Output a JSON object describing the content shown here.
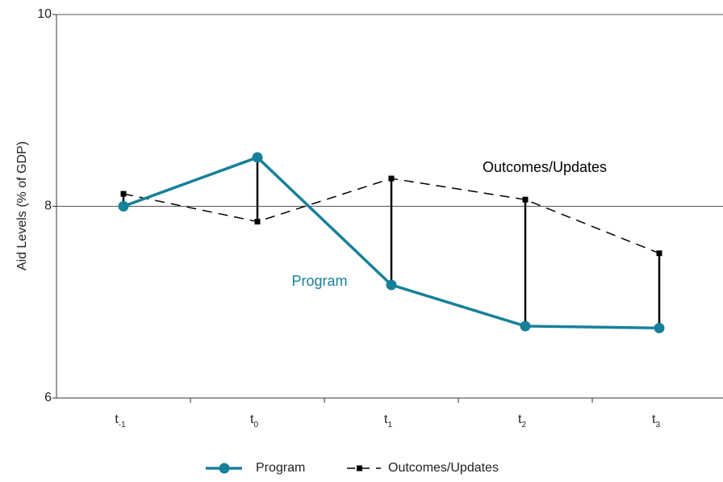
{
  "chart_data": {
    "type": "line",
    "y_label": "Aid Levels (% of GDP)",
    "categories": [
      {
        "base": "t",
        "sub": "-1"
      },
      {
        "base": "t",
        "sub": "0"
      },
      {
        "base": "t",
        "sub": "1"
      },
      {
        "base": "t",
        "sub": "2"
      },
      {
        "base": "t",
        "sub": "3"
      }
    ],
    "series": [
      {
        "name": "Program",
        "color": "#17809a",
        "values": [
          8.0,
          8.51,
          7.18,
          6.75,
          6.73
        ]
      },
      {
        "name": "Outcomes/Updates",
        "color": "#000000",
        "values": [
          8.13,
          7.84,
          8.29,
          8.07,
          7.51
        ]
      }
    ],
    "annotations": [
      {
        "text": "Outcomes/Updates",
        "series": 1
      },
      {
        "text": "Program",
        "series": 0
      }
    ],
    "ylim": [
      6,
      10
    ],
    "yticks": [
      6,
      8,
      10
    ],
    "grid": true,
    "legend": "bottom"
  }
}
